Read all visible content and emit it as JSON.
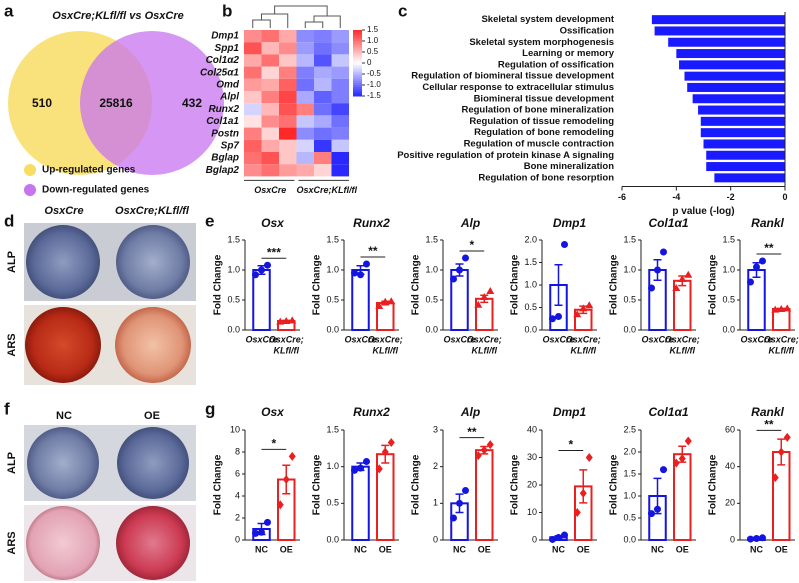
{
  "panel_labels": [
    "a",
    "b",
    "c",
    "d",
    "e",
    "f",
    "g"
  ],
  "images": {
    "d": {
      "columns": [
        "OsxCre",
        "OsxCre;KLfl/fl"
      ],
      "rows": [
        "ALP",
        "ARS"
      ]
    },
    "f": {
      "columns": [
        "NC",
        "OE"
      ],
      "rows": [
        "ALP",
        "ARS"
      ]
    }
  },
  "chart_data": [
    {
      "type": "venn",
      "title": "OsxCre;KLfl/fl vs OsxCre",
      "values": [
        510,
        25816,
        432
      ],
      "series": [
        {
          "name": "Up-regulated genes",
          "color": "#f8dc64"
        },
        {
          "name": "Down-regulated genes",
          "color": "#c774ef"
        }
      ]
    },
    {
      "type": "heatmap",
      "rows": [
        "Dmp1",
        "Spp1",
        "Col1α2",
        "Col25α1",
        "Omd",
        "Alpl",
        "Runx2",
        "Col1a1",
        "Postn",
        "Sp7",
        "Bglap",
        "Bglap2"
      ],
      "values": [
        [
          0.8,
          1.0,
          0.6,
          -0.8,
          -0.9,
          -0.7
        ],
        [
          1.2,
          0.5,
          0.8,
          -0.7,
          -1.0,
          -0.8
        ],
        [
          0.6,
          1.0,
          0.4,
          -0.5,
          -1.2,
          -0.4
        ],
        [
          1.0,
          0.3,
          0.9,
          -0.9,
          -0.6,
          -0.7
        ],
        [
          0.7,
          0.6,
          1.1,
          -1.0,
          -0.5,
          -0.9
        ],
        [
          0.4,
          0.9,
          1.3,
          -0.6,
          -1.1,
          -0.9
        ],
        [
          -0.3,
          0.5,
          1.2,
          0.9,
          -1.0,
          -1.3
        ],
        [
          0.2,
          0.8,
          1.0,
          -0.4,
          -0.6,
          -1.0
        ],
        [
          0.9,
          0.3,
          1.5,
          -0.8,
          -1.0,
          -0.9
        ],
        [
          1.1,
          0.6,
          0.4,
          -0.3,
          -1.4,
          -0.4
        ],
        [
          1.0,
          1.2,
          0.4,
          -0.5,
          0.9,
          -1.5
        ],
        [
          0.8,
          1.0,
          0.7,
          0.6,
          0.3,
          -1.6
        ]
      ],
      "column_groups": [
        "OsxCre",
        "OsxCre;KLfl/fl"
      ],
      "clim": [
        -1.5,
        1.5
      ],
      "colorbar_ticks": [
        1.5,
        {
          "value": 1,
          "label": "1.0"
        },
        0.5,
        0,
        -0.5,
        {
          "value": -1,
          "label": "-1.0"
        },
        -1.5
      ]
    },
    {
      "type": "hbar",
      "categories": [
        "Skeletal system development",
        "Ossification",
        "Skeletal system morphogenesis",
        "Learning or memory",
        "Regulation of ossification",
        "Regulation of biomineral tissue development",
        "Cellular response to extracellular stimulus",
        "Biomineral tissue development",
        "Regulation of bone mineralization",
        "Regulation of tissue remodeling",
        "Regulation of bone remodeling",
        "Regulation of muscle contraction",
        "Positive regulation of protein kinase A signaling",
        "Bone mineralization",
        "Regulation of bone resorption"
      ],
      "values": [
        -4.9,
        -4.8,
        -4.3,
        -4.0,
        -3.9,
        -3.7,
        -3.6,
        -3.4,
        -3.2,
        -3.1,
        -3.1,
        -3.0,
        -2.9,
        -2.9,
        -2.6
      ],
      "color": "#1a1aff",
      "xlim": [
        -6,
        0
      ],
      "xticks": [
        -6,
        -4,
        -2,
        0
      ],
      "xlabel": "p value (-log)"
    },
    {
      "type": "bar",
      "title": "Osx",
      "ylabel": "Fold Change",
      "categories": [
        [
          "OsxCre"
        ],
        [
          "OsxCre;",
          "KLfl/fl"
        ]
      ],
      "colors": [
        "#1515e0",
        "#ea2020"
      ],
      "point_shapes": [
        "circle",
        "triangle"
      ],
      "values": [
        1.0,
        0.15
      ],
      "errors": [
        0.07,
        0.01
      ],
      "points": [
        [
          0.92,
          1.0,
          1.08
        ],
        [
          0.14,
          0.15,
          0.16
        ]
      ],
      "ylim": [
        0,
        1.5
      ],
      "yticks": [
        {
          "value": 0,
          "label": "0.0"
        },
        0.5,
        {
          "value": 1,
          "label": "1.0"
        },
        1.5
      ],
      "significance": "***"
    },
    {
      "type": "bar",
      "title": "Runx2",
      "ylabel": "Fold Change",
      "categories": [
        [
          "OsxCre"
        ],
        [
          "OsxCre;",
          "KLfl/fl"
        ]
      ],
      "colors": [
        "#1515e0",
        "#ea2020"
      ],
      "point_shapes": [
        "circle",
        "triangle"
      ],
      "values": [
        1.0,
        0.45
      ],
      "errors": [
        0.07,
        0.03
      ],
      "points": [
        [
          0.95,
          0.92,
          1.1
        ],
        [
          0.4,
          0.47,
          0.48
        ]
      ],
      "ylim": [
        0,
        1.5
      ],
      "yticks": [
        {
          "value": 0,
          "label": "0.0"
        },
        0.5,
        {
          "value": 1,
          "label": "1.0"
        },
        1.5
      ],
      "significance": "**"
    },
    {
      "type": "bar",
      "title": "Alp",
      "ylabel": "Fold Change",
      "categories": [
        [
          "OsxCre"
        ],
        [
          "OsxCre;",
          "KLfl/fl"
        ]
      ],
      "colors": [
        "#1515e0",
        "#ea2020"
      ],
      "point_shapes": [
        "circle",
        "triangle"
      ],
      "values": [
        1.0,
        0.52
      ],
      "errors": [
        0.1,
        0.06
      ],
      "points": [
        [
          0.85,
          1.0,
          1.2
        ],
        [
          0.42,
          0.55,
          0.65
        ]
      ],
      "ylim": [
        0,
        1.5
      ],
      "yticks": [
        {
          "value": 0,
          "label": "0.0"
        },
        0.5,
        {
          "value": 1,
          "label": "1.0"
        },
        1.5
      ],
      "significance": "*"
    },
    {
      "type": "bar",
      "title": "Dmp1",
      "ylabel": "Fold Change",
      "categories": [
        [
          "OsxCre"
        ],
        [
          "OsxCre;",
          "KLfl/fl"
        ]
      ],
      "colors": [
        "#1515e0",
        "#ea2020"
      ],
      "point_shapes": [
        "circle",
        "triangle"
      ],
      "values": [
        1.0,
        0.45
      ],
      "errors": [
        0.45,
        0.08
      ],
      "points": [
        [
          0.25,
          0.3,
          1.9
        ],
        [
          0.35,
          0.48,
          0.55
        ]
      ],
      "ylim": [
        0,
        2
      ],
      "yticks": [
        {
          "value": 0,
          "label": "0.0"
        },
        0.5,
        {
          "value": 1,
          "label": "1.0"
        },
        1.5,
        {
          "value": 2,
          "label": "2.0"
        }
      ]
    },
    {
      "type": "bar",
      "title": "Col1α1",
      "ylabel": "Fold Change",
      "categories": [
        [
          "OsxCre"
        ],
        [
          "OsxCre;",
          "KLfl/fl"
        ]
      ],
      "colors": [
        "#1515e0",
        "#ea2020"
      ],
      "point_shapes": [
        "circle",
        "triangle"
      ],
      "values": [
        1.0,
        0.82
      ],
      "errors": [
        0.17,
        0.08
      ],
      "points": [
        [
          0.7,
          1.0,
          1.3
        ],
        [
          0.7,
          0.85,
          0.92
        ]
      ],
      "ylim": [
        0,
        1.5
      ],
      "yticks": [
        {
          "value": 0,
          "label": "0.0"
        },
        0.5,
        {
          "value": 1,
          "label": "1.0"
        },
        1.5
      ]
    },
    {
      "type": "bar",
      "title": "Rankl",
      "ylabel": "Fold Change",
      "categories": [
        [
          "OsxCre"
        ],
        [
          "OsxCre;",
          "KLfl/fl"
        ]
      ],
      "colors": [
        "#1515e0",
        "#ea2020"
      ],
      "point_shapes": [
        "circle",
        "triangle"
      ],
      "values": [
        1.0,
        0.35
      ],
      "errors": [
        0.12,
        0.01
      ],
      "points": [
        [
          0.8,
          1.05,
          1.15
        ],
        [
          0.34,
          0.35,
          0.36
        ]
      ],
      "ylim": [
        0,
        1.5
      ],
      "yticks": [
        {
          "value": 0,
          "label": "0.0"
        },
        0.5,
        {
          "value": 1,
          "label": "1.0"
        },
        1.5
      ],
      "significance": "**"
    },
    {
      "type": "bar",
      "title": "Osx",
      "ylabel": "Fold Change",
      "categories": [
        [
          "NC"
        ],
        [
          "OE"
        ]
      ],
      "colors": [
        "#1515e0",
        "#ea2020"
      ],
      "point_shapes": [
        "circle",
        "diamond"
      ],
      "values": [
        1.0,
        5.5
      ],
      "errors": [
        0.5,
        1.3
      ],
      "points": [
        [
          0.6,
          0.7,
          1.6
        ],
        [
          3.2,
          5.5,
          7.6
        ]
      ],
      "ylim": [
        0,
        10
      ],
      "yticks": [
        0,
        2,
        4,
        6,
        8,
        10
      ],
      "significance": "*"
    },
    {
      "type": "bar",
      "title": "Runx2",
      "ylabel": "Fold Change",
      "categories": [
        [
          "NC"
        ],
        [
          "OE"
        ]
      ],
      "colors": [
        "#1515e0",
        "#ea2020"
      ],
      "point_shapes": [
        "circle",
        "diamond"
      ],
      "values": [
        1.0,
        1.17
      ],
      "errors": [
        0.05,
        0.12
      ],
      "points": [
        [
          0.95,
          0.98,
          1.07
        ],
        [
          0.97,
          1.2,
          1.33
        ]
      ],
      "ylim": [
        0,
        1.5
      ],
      "yticks": [
        {
          "value": 0,
          "label": "0.0"
        },
        0.5,
        {
          "value": 1,
          "label": "1.0"
        },
        1.5
      ]
    },
    {
      "type": "bar",
      "title": "Alp",
      "ylabel": "Fold Change",
      "categories": [
        [
          "NC"
        ],
        [
          "OE"
        ]
      ],
      "colors": [
        "#1515e0",
        "#ea2020"
      ],
      "point_shapes": [
        "circle",
        "diamond"
      ],
      "values": [
        1.0,
        2.45
      ],
      "errors": [
        0.25,
        0.1
      ],
      "points": [
        [
          0.6,
          1.0,
          1.35
        ],
        [
          2.3,
          2.45,
          2.6
        ]
      ],
      "ylim": [
        0,
        3
      ],
      "yticks": [
        0,
        1,
        2,
        3
      ],
      "significance": "**"
    },
    {
      "type": "bar",
      "title": "Dmp1",
      "ylabel": "Fold Change",
      "categories": [
        [
          "NC"
        ],
        [
          "OE"
        ]
      ],
      "colors": [
        "#1515e0",
        "#ea2020"
      ],
      "point_shapes": [
        "circle",
        "diamond"
      ],
      "values": [
        1.0,
        19.5
      ],
      "errors": [
        0.5,
        6
      ],
      "points": [
        [
          0.2,
          0.9,
          1.8
        ],
        [
          10,
          17,
          30
        ]
      ],
      "ylim": [
        0,
        40
      ],
      "yticks": [
        0,
        10,
        20,
        30,
        40
      ],
      "significance": "*"
    },
    {
      "type": "bar",
      "title": "Col1α1",
      "ylabel": "Fold Change",
      "categories": [
        [
          "NC"
        ],
        [
          "OE"
        ]
      ],
      "colors": [
        "#1515e0",
        "#ea2020"
      ],
      "point_shapes": [
        "circle",
        "diamond"
      ],
      "values": [
        1.0,
        1.95
      ],
      "errors": [
        0.4,
        0.18
      ],
      "points": [
        [
          0.6,
          0.7,
          1.6
        ],
        [
          1.75,
          1.85,
          2.25
        ]
      ],
      "ylim": [
        0,
        2.5
      ],
      "yticks": [
        {
          "value": 0,
          "label": "0.0"
        },
        0.5,
        {
          "value": 1,
          "label": "1.0"
        },
        1.5,
        {
          "value": 2,
          "label": "2.0"
        },
        2.5
      ]
    },
    {
      "type": "bar",
      "title": "Rankl",
      "ylabel": "Fold Change",
      "categories": [
        [
          "NC"
        ],
        [
          "OE"
        ]
      ],
      "colors": [
        "#1515e0",
        "#ea2020"
      ],
      "point_shapes": [
        "circle",
        "diamond"
      ],
      "values": [
        1.0,
        48
      ],
      "errors": [
        0.3,
        7
      ],
      "points": [
        [
          0.5,
          0.8,
          1.2
        ],
        [
          34,
          48,
          56
        ]
      ],
      "ylim": [
        0,
        60
      ],
      "yticks": [
        0,
        20,
        40,
        60
      ],
      "significance": "**"
    }
  ]
}
